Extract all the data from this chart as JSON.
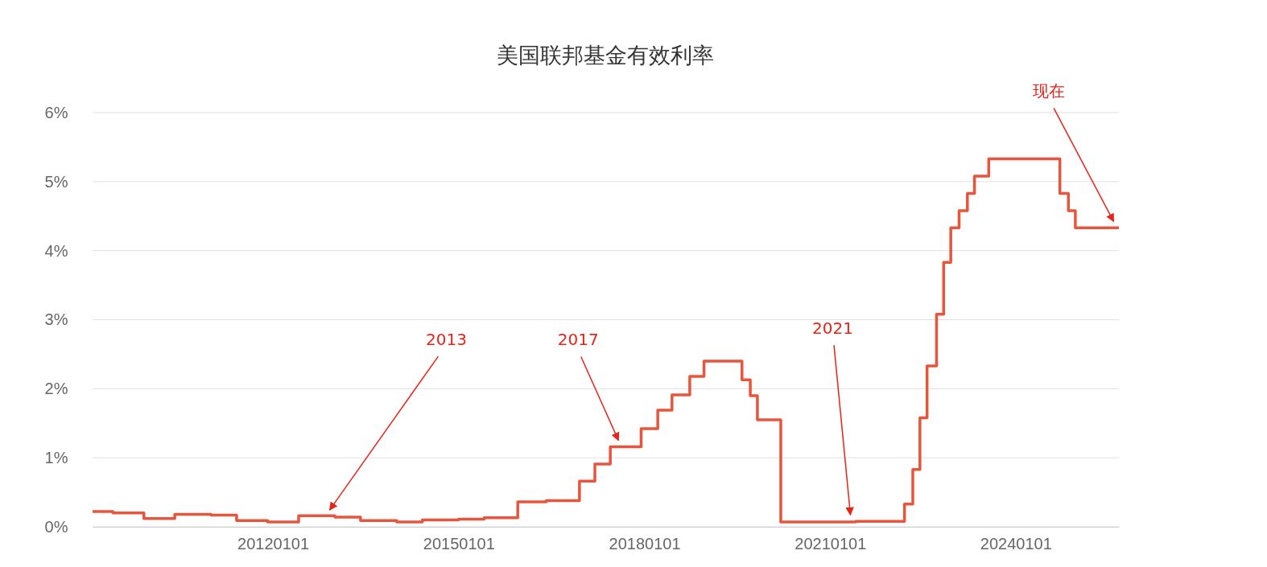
{
  "chart_data": {
    "type": "step",
    "title": "美国联邦基金有效利率",
    "x": [
      "2009-02-01",
      "2009-06-01",
      "2009-12-01",
      "2010-06-01",
      "2011-01-01",
      "2011-06-01",
      "2011-12-01",
      "2012-06-01",
      "2013-01-01",
      "2013-06-01",
      "2014-01-01",
      "2014-06-01",
      "2015-01-01",
      "2015-06-01",
      "2015-12-16",
      "2016-06-01",
      "2016-12-14",
      "2017-03-15",
      "2017-06-14",
      "2017-12-13",
      "2018-03-21",
      "2018-06-13",
      "2018-09-26",
      "2018-12-19",
      "2019-07-31",
      "2019-09-18",
      "2019-10-30",
      "2020-03-16",
      "2021-06-01",
      "2022-03-16",
      "2022-05-04",
      "2022-06-15",
      "2022-07-27",
      "2022-09-21",
      "2022-11-02",
      "2022-12-14",
      "2023-02-01",
      "2023-03-22",
      "2023-05-03",
      "2023-07-26",
      "2024-09-18",
      "2024-11-07",
      "2024-12-18",
      "2025-09-01"
    ],
    "series": [
      {
        "color": "#e8553d",
        "values": [
          0.22,
          0.2,
          0.12,
          0.18,
          0.17,
          0.09,
          0.07,
          0.16,
          0.14,
          0.09,
          0.07,
          0.1,
          0.11,
          0.13,
          0.36,
          0.38,
          0.66,
          0.91,
          1.16,
          1.42,
          1.69,
          1.91,
          2.18,
          2.4,
          2.13,
          1.9,
          1.55,
          0.07,
          0.08,
          0.33,
          0.83,
          1.58,
          2.33,
          3.08,
          3.83,
          4.33,
          4.58,
          4.83,
          5.08,
          5.33,
          4.83,
          4.58,
          4.33,
          4.33
        ]
      }
    ],
    "xlim": [
      "2009-02-01",
      "2025-09-01"
    ],
    "xticks": [
      {
        "value": "2012-01-01",
        "label": "20120101"
      },
      {
        "value": "2015-01-01",
        "label": "20150101"
      },
      {
        "value": "2018-01-01",
        "label": "20180101"
      },
      {
        "value": "2021-01-01",
        "label": "20210101"
      },
      {
        "value": "2024-01-01",
        "label": "20240101"
      }
    ],
    "ylim": [
      0,
      6
    ],
    "yticks": [
      {
        "value": 0,
        "label": "0%"
      },
      {
        "value": 1,
        "label": "1%"
      },
      {
        "value": 2,
        "label": "2%"
      },
      {
        "value": 3,
        "label": "3%"
      },
      {
        "value": 4,
        "label": "4%"
      },
      {
        "value": 5,
        "label": "5%"
      },
      {
        "value": 6,
        "label": "6%"
      }
    ],
    "grid": "y",
    "annotations": [
      {
        "text": "2013",
        "x": "2012-12-01",
        "y": 0.15
      },
      {
        "text": "2017",
        "x": "2017-08-01",
        "y": 1.16
      },
      {
        "text": "2021",
        "x": "2021-05-01",
        "y": 0.08
      },
      {
        "text": "现在",
        "x": "2025-08-01",
        "y": 4.33
      }
    ]
  }
}
